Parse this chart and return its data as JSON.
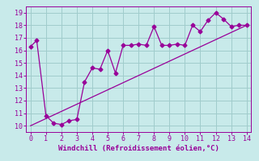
{
  "title": "",
  "xlabel": "Windchill (Refroidissement éolien,°C)",
  "ylabel": "",
  "xlim": [
    -0.3,
    14.3
  ],
  "ylim": [
    9.5,
    19.5
  ],
  "xticks": [
    0,
    1,
    2,
    3,
    4,
    5,
    6,
    7,
    8,
    9,
    10,
    11,
    12,
    13,
    14
  ],
  "yticks": [
    10,
    11,
    12,
    13,
    14,
    15,
    16,
    17,
    18,
    19
  ],
  "bg_color": "#c8eaea",
  "line_color": "#990099",
  "grid_color": "#a0cccc",
  "curve_x": [
    0,
    0.4,
    1.0,
    1.5,
    2.0,
    2.5,
    3.0,
    3.5,
    4.0,
    4.5,
    5.0,
    5.5,
    6.0,
    6.5,
    7.0,
    7.5,
    8.0,
    8.5,
    9.0,
    9.5,
    10.0,
    10.5,
    11.0,
    11.5,
    12.0,
    12.5,
    13.0,
    13.5,
    14.0
  ],
  "curve_y": [
    16.3,
    16.8,
    10.8,
    10.2,
    10.1,
    10.4,
    10.5,
    13.5,
    14.6,
    14.5,
    16.0,
    14.2,
    16.4,
    16.4,
    16.5,
    16.4,
    17.9,
    16.4,
    16.4,
    16.5,
    16.4,
    18.0,
    17.5,
    18.4,
    19.0,
    18.5,
    17.9,
    18.0,
    18.0
  ],
  "line_x": [
    0,
    14
  ],
  "line_y": [
    10.0,
    18.0
  ],
  "marker": "D",
  "marker_size": 2.5,
  "tick_fontsize": 6.0,
  "xlabel_fontsize": 6.5
}
